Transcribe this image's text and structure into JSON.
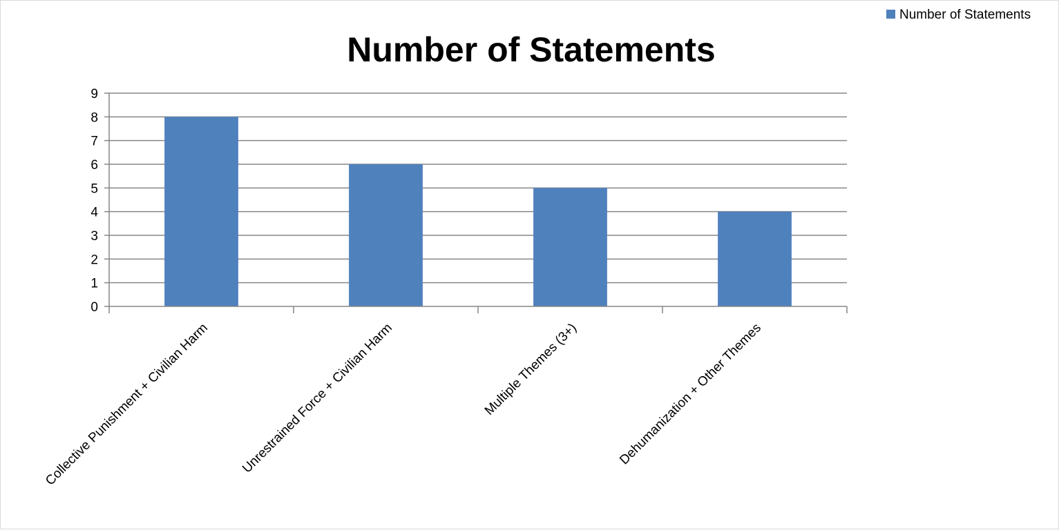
{
  "chart_data": {
    "type": "bar",
    "title": "Number of Statements",
    "categories": [
      "Collective Punishment + Civilian Harm",
      "Unrestrained Force + Civilian Harm",
      "Multiple Themes (3+)",
      "Dehumanization + Other Themes"
    ],
    "series": [
      {
        "name": "Number of Statements",
        "values": [
          8,
          6,
          5,
          4
        ],
        "color": "#4f81bd"
      }
    ],
    "xlabel": "",
    "ylabel": "",
    "ylim": [
      0,
      9
    ],
    "yticks": [
      0,
      1,
      2,
      3,
      4,
      5,
      6,
      7,
      8,
      9
    ],
    "grid": true,
    "legend": "top-right"
  }
}
